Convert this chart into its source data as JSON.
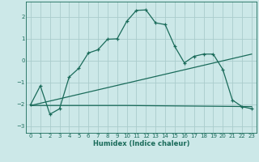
{
  "xlabel": "Humidex (Indice chaleur)",
  "bg_color": "#cce8e8",
  "grid_color": "#aacccc",
  "line_color": "#1a6b5a",
  "xlim": [
    -0.5,
    23.5
  ],
  "ylim": [
    -3.3,
    2.7
  ],
  "yticks": [
    -3,
    -2,
    -1,
    0,
    1,
    2
  ],
  "xticks": [
    0,
    1,
    2,
    3,
    4,
    5,
    6,
    7,
    8,
    9,
    10,
    11,
    12,
    13,
    14,
    15,
    16,
    17,
    18,
    19,
    20,
    21,
    22,
    23
  ],
  "curve1_x": [
    0,
    1,
    2,
    3,
    4,
    5,
    6,
    7,
    8,
    9,
    10,
    11,
    12,
    13,
    14,
    15,
    16,
    17,
    18,
    19,
    20,
    21,
    22,
    23
  ],
  "curve1_y": [
    -2.0,
    -1.15,
    -2.45,
    -2.2,
    -0.75,
    -0.35,
    0.35,
    0.5,
    0.98,
    1.0,
    1.8,
    2.3,
    2.32,
    1.73,
    1.65,
    0.65,
    -0.1,
    0.2,
    0.3,
    0.3,
    -0.4,
    -1.8,
    -2.1,
    -2.2
  ],
  "curve2_x": [
    0,
    10,
    23
  ],
  "curve2_y": [
    -2.05,
    -2.05,
    -2.1
  ],
  "curve3_x": [
    0,
    23
  ],
  "curve3_y": [
    -2.05,
    0.3
  ],
  "figsize": [
    3.2,
    2.0
  ],
  "dpi": 100
}
